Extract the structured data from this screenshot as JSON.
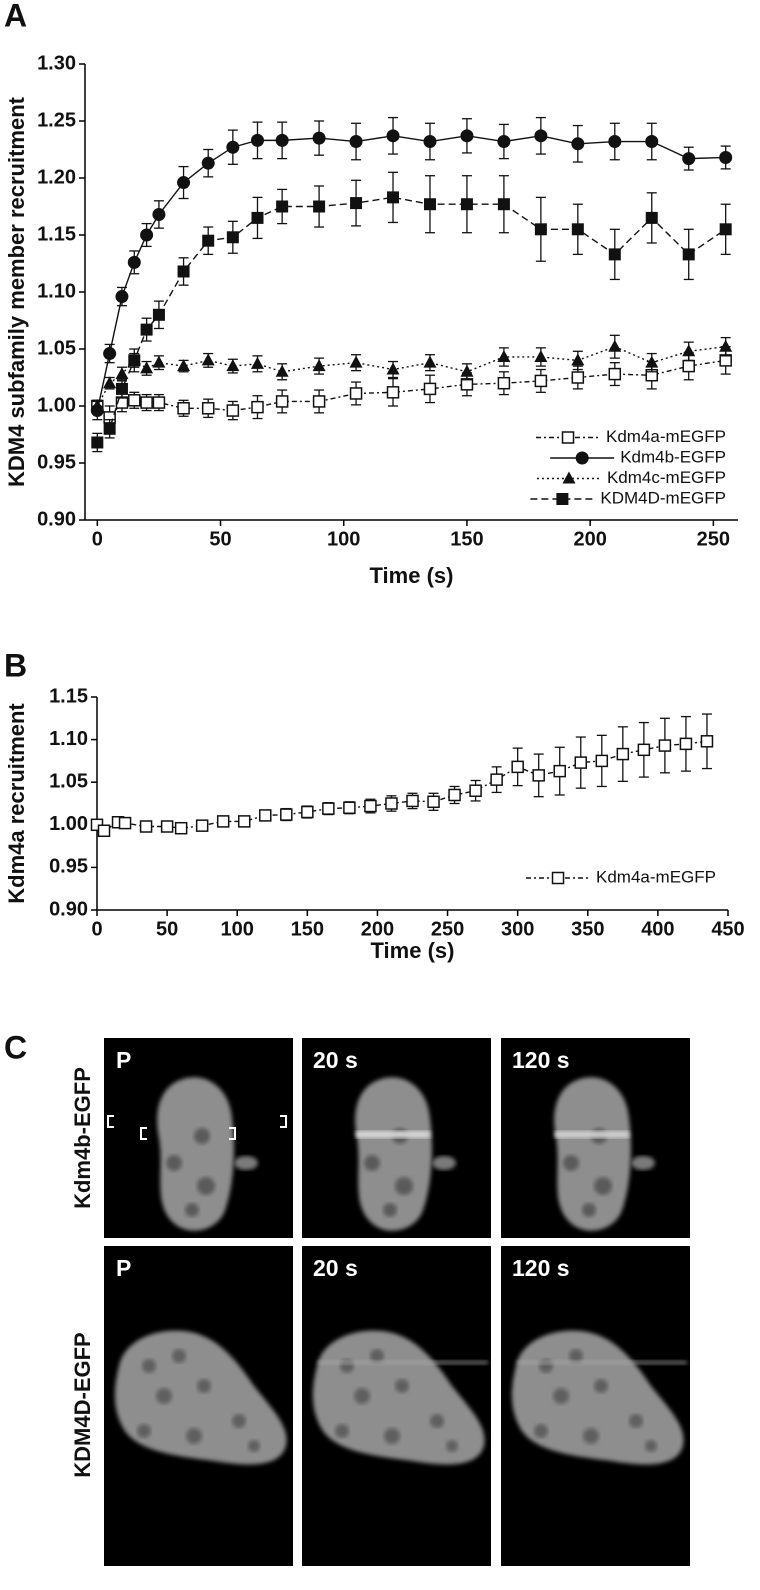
{
  "panel_labels": [
    "A",
    "B",
    "C"
  ],
  "chart_data": [
    {
      "type": "line",
      "xlabel": "Time (s)",
      "ylabel": "KDM4 subfamily member recruitment",
      "xlim": [
        -5,
        260
      ],
      "xticks": [
        0,
        50,
        100,
        150,
        200,
        250
      ],
      "ylim": [
        0.9,
        1.3
      ],
      "yticks": [
        {
          "value": 0.9,
          "label": "0.90"
        },
        0.95,
        {
          "value": 1.0,
          "label": "1.00"
        },
        1.05,
        {
          "value": 1.1,
          "label": "1.10"
        },
        1.15,
        {
          "value": 1.2,
          "label": "1.20"
        },
        1.25,
        {
          "value": 1.3,
          "label": "1.30"
        }
      ],
      "legend": "lower right",
      "x": [
        0,
        5,
        10,
        15,
        20,
        25,
        35,
        45,
        55,
        65,
        75,
        90,
        105,
        120,
        135,
        150,
        165,
        180,
        195,
        210,
        225,
        240,
        255
      ],
      "series": [
        {
          "name": "Kdm4a-mEGFP",
          "color": "#111111",
          "marker": "open-square",
          "line_style": "dashdot",
          "values": [
            1.0,
            0.99,
            1.003,
            1.005,
            1.003,
            1.003,
            0.998,
            0.998,
            0.996,
            0.999,
            1.004,
            1.004,
            1.011,
            1.012,
            1.015,
            1.019,
            1.02,
            1.022,
            1.025,
            1.028,
            1.027,
            1.035,
            1.04
          ],
          "errors": [
            0.005,
            0.01,
            0.008,
            0.007,
            0.007,
            0.007,
            0.007,
            0.008,
            0.008,
            0.01,
            0.01,
            0.01,
            0.01,
            0.012,
            0.012,
            0.01,
            0.01,
            0.01,
            0.01,
            0.01,
            0.012,
            0.012,
            0.012
          ]
        },
        {
          "name": "Kdm4b-EGFP",
          "color": "#111111",
          "marker": "circle",
          "line_style": "solid",
          "values": [
            0.996,
            1.046,
            1.096,
            1.126,
            1.15,
            1.168,
            1.196,
            1.213,
            1.227,
            1.233,
            1.233,
            1.235,
            1.232,
            1.237,
            1.232,
            1.237,
            1.232,
            1.237,
            1.23,
            1.232,
            1.232,
            1.217,
            1.218
          ],
          "errors": [
            0.008,
            0.008,
            0.008,
            0.01,
            0.01,
            0.012,
            0.014,
            0.012,
            0.015,
            0.016,
            0.016,
            0.015,
            0.016,
            0.016,
            0.016,
            0.015,
            0.015,
            0.016,
            0.016,
            0.016,
            0.016,
            0.01,
            0.01
          ]
        },
        {
          "name": "Kdm4c-mEGFP",
          "color": "#111111",
          "marker": "triangle",
          "line_style": "dotted",
          "values": [
            1.0,
            1.02,
            1.028,
            1.04,
            1.033,
            1.038,
            1.035,
            1.04,
            1.035,
            1.037,
            1.03,
            1.035,
            1.038,
            1.032,
            1.038,
            1.03,
            1.043,
            1.043,
            1.04,
            1.052,
            1.038,
            1.048,
            1.052
          ],
          "errors": [
            0.005,
            0.005,
            0.006,
            0.006,
            0.006,
            0.006,
            0.005,
            0.006,
            0.006,
            0.007,
            0.007,
            0.007,
            0.007,
            0.007,
            0.007,
            0.007,
            0.008,
            0.008,
            0.008,
            0.01,
            0.008,
            0.008,
            0.008
          ]
        },
        {
          "name": "KDM4D-mEGFP",
          "color": "#111111",
          "marker": "square",
          "line_style": "dashed",
          "values": [
            0.968,
            0.98,
            1.015,
            1.04,
            1.067,
            1.08,
            1.118,
            1.145,
            1.148,
            1.165,
            1.175,
            1.175,
            1.178,
            1.183,
            1.177,
            1.177,
            1.177,
            1.155,
            1.155,
            1.133,
            1.165,
            1.133,
            1.155
          ],
          "errors": [
            0.008,
            0.008,
            0.008,
            0.01,
            0.01,
            0.012,
            0.012,
            0.012,
            0.014,
            0.018,
            0.015,
            0.018,
            0.02,
            0.022,
            0.025,
            0.025,
            0.025,
            0.028,
            0.022,
            0.022,
            0.022,
            0.022,
            0.022
          ]
        }
      ]
    },
    {
      "type": "line",
      "xlabel": "Time (s)",
      "ylabel": "Kdm4a recruitment",
      "xlim": [
        0,
        450
      ],
      "xticks": [
        0,
        50,
        100,
        150,
        200,
        250,
        300,
        350,
        400,
        450
      ],
      "ylim": [
        0.9,
        1.15
      ],
      "yticks": [
        {
          "value": 0.9,
          "label": "0.90"
        },
        0.95,
        {
          "value": 1.0,
          "label": "1.00"
        },
        1.05,
        {
          "value": 1.1,
          "label": "1.10"
        },
        1.15
      ],
      "legend": "lower right",
      "x": [
        0,
        5,
        15,
        20,
        35,
        50,
        60,
        75,
        90,
        105,
        120,
        135,
        150,
        165,
        180,
        195,
        210,
        225,
        240,
        255,
        270,
        285,
        300,
        315,
        330,
        345,
        360,
        375,
        390,
        405,
        420,
        435
      ],
      "series": [
        {
          "name": "Kdm4a-mEGFP",
          "color": "#111111",
          "marker": "open-square",
          "line_style": "dashdot",
          "values": [
            1.0,
            0.993,
            1.003,
            1.002,
            0.998,
            0.998,
            0.996,
            0.999,
            1.004,
            1.004,
            1.011,
            1.012,
            1.015,
            1.019,
            1.02,
            1.022,
            1.025,
            1.028,
            1.027,
            1.035,
            1.04,
            1.053,
            1.068,
            1.058,
            1.063,
            1.073,
            1.075,
            1.083,
            1.088,
            1.093,
            1.095,
            1.098
          ],
          "errors": [
            0.004,
            0.006,
            0.005,
            0.005,
            0.004,
            0.005,
            0.005,
            0.005,
            0.006,
            0.006,
            0.006,
            0.007,
            0.007,
            0.007,
            0.007,
            0.008,
            0.009,
            0.009,
            0.01,
            0.01,
            0.012,
            0.015,
            0.022,
            0.025,
            0.028,
            0.03,
            0.03,
            0.032,
            0.032,
            0.032,
            0.032,
            0.032
          ]
        }
      ]
    }
  ],
  "panel_c": {
    "columns": [
      "P",
      "20 s",
      "120 s"
    ],
    "rows": [
      "Kdm4b-EGFP",
      "KDM4D-EGFP"
    ]
  }
}
